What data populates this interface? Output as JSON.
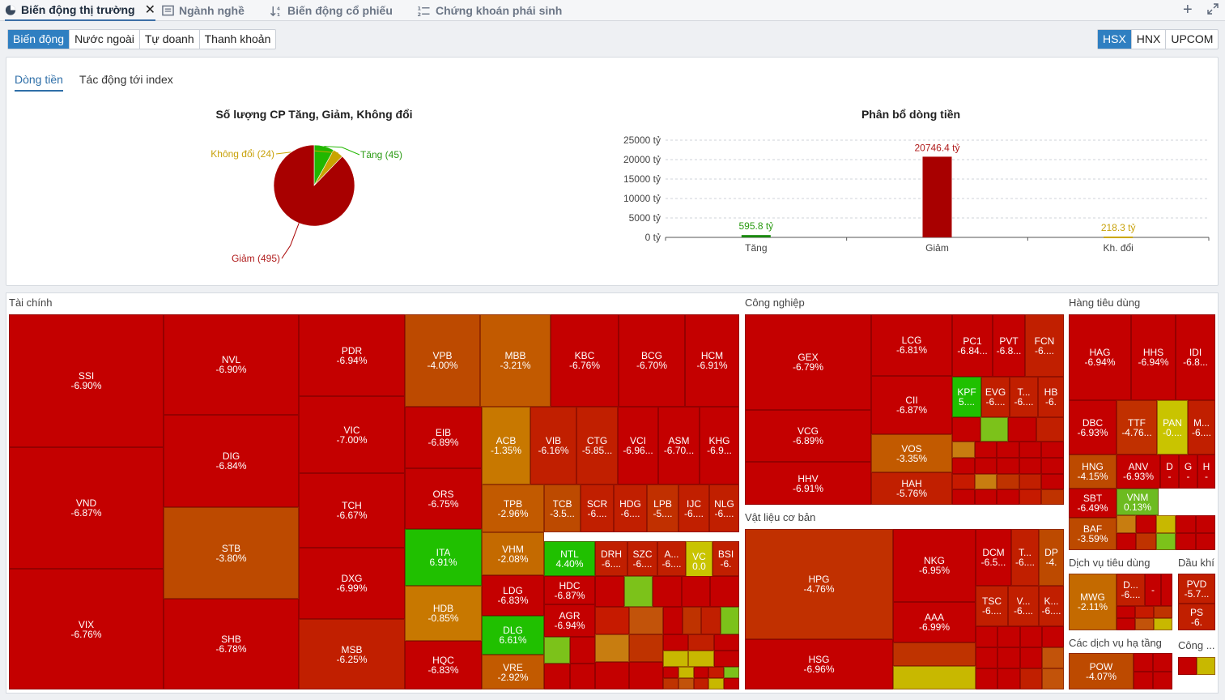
{
  "tabs": [
    {
      "label": "Biến động thị trường",
      "icon": "pie-chart-icon",
      "active": true
    },
    {
      "label": "Ngành nghề",
      "icon": "list-icon",
      "active": false
    },
    {
      "label": "Biến động cổ phiếu",
      "icon": "sort-icon",
      "active": false
    },
    {
      "label": "Chứng khoán phái sinh",
      "icon": "numbered-list-icon",
      "active": false
    }
  ],
  "filter_buttons": [
    "Biến động",
    "Nước ngoài",
    "Tự doanh",
    "Thanh khoản"
  ],
  "exchange_buttons": [
    "HSX",
    "HNX",
    "UPCOM"
  ],
  "subtabs": [
    "Dòng tiền",
    "Tác động tới index"
  ],
  "colors": {
    "down": "#b30000",
    "up": "#21b700",
    "flat": "#c9a400",
    "bar_up": "#198a0e",
    "bar_down": "#a80000",
    "label_up": "#2a9a12",
    "label_down": "#b01c1c",
    "label_flat": "#c8a10a",
    "accent": "#2f7fc1"
  },
  "chart_data": [
    {
      "type": "pie",
      "title": "Số lượng CP Tăng, Giảm, Không đổi",
      "slices": [
        {
          "label": "Tăng (45)",
          "value": 45
        },
        {
          "label": "Không đổi (24)",
          "value": 24
        },
        {
          "label": "Giảm (495)",
          "value": 495
        }
      ]
    },
    {
      "type": "bar",
      "title": "Phân bổ dòng tiền",
      "categories": [
        "Tăng",
        "Giảm",
        "Kh. đổi"
      ],
      "values": [
        595.8,
        20746.4,
        218.3
      ],
      "value_labels": [
        "595.8 tỷ",
        "20746.4 tỷ",
        "218.3 tỷ"
      ],
      "yticks": [
        "0 tỷ",
        "5000 tỷ",
        "10000 tỷ",
        "15000 tỷ",
        "20000 tỷ",
        "25000 tỷ"
      ],
      "ylim": [
        0,
        25000
      ],
      "grid": true
    }
  ],
  "sectors": [
    "Tài chính",
    "Công nghiệp",
    "Hàng tiêu dùng",
    "Vật liệu cơ bản",
    "Dịch vụ tiêu dùng",
    "Dầu khí",
    "Các dịch vụ hạ tầng",
    "Công ..."
  ],
  "stocks": [
    {
      "t": "SSI",
      "p": "-6.90%"
    },
    {
      "t": "VND",
      "p": "-6.87%"
    },
    {
      "t": "VIX",
      "p": "-6.76%"
    },
    {
      "t": "NVL",
      "p": "-6.90%"
    },
    {
      "t": "DIG",
      "p": "-6.84%"
    },
    {
      "t": "STB",
      "p": "-3.80%"
    },
    {
      "t": "SHB",
      "p": "-6.78%"
    },
    {
      "t": "PDR",
      "p": "-6.94%"
    },
    {
      "t": "VIC",
      "p": "-7.00%"
    },
    {
      "t": "TCH",
      "p": "-6.67%"
    },
    {
      "t": "DXG",
      "p": "-6.99%"
    },
    {
      "t": "MSB",
      "p": "-6.25%"
    },
    {
      "t": "VPB",
      "p": "-4.00%"
    },
    {
      "t": "MBB",
      "p": "-3.21%"
    },
    {
      "t": "KBC",
      "p": "-6.76%"
    },
    {
      "t": "BCG",
      "p": "-6.70%"
    },
    {
      "t": "HCM",
      "p": "-6.91%"
    },
    {
      "t": "EIB",
      "p": "-6.89%"
    },
    {
      "t": "ORS",
      "p": "-6.75%"
    },
    {
      "t": "ITA",
      "p": "6.91%"
    },
    {
      "t": "HDB",
      "p": "-0.85%"
    },
    {
      "t": "HQC",
      "p": "-6.83%"
    },
    {
      "t": "ACB",
      "p": "-1.35%"
    },
    {
      "t": "VIB",
      "p": "-6.16%"
    },
    {
      "t": "CTG",
      "p": "-5.85..."
    },
    {
      "t": "VCI",
      "p": "-6.96..."
    },
    {
      "t": "ASM",
      "p": "-6.70..."
    },
    {
      "t": "KHG",
      "p": "-6.9..."
    },
    {
      "t": "TPB",
      "p": "-2.96%"
    },
    {
      "t": "TCB",
      "p": "-3.5..."
    },
    {
      "t": "SCR",
      "p": "-6...."
    },
    {
      "t": "HDG",
      "p": "-6...."
    },
    {
      "t": "LPB",
      "p": "-5...."
    },
    {
      "t": "IJC",
      "p": "-6...."
    },
    {
      "t": "NLG",
      "p": "-6...."
    },
    {
      "t": "VHM",
      "p": "-2.08%"
    },
    {
      "t": "NTL",
      "p": "4.40%"
    },
    {
      "t": "DRH",
      "p": "-6...."
    },
    {
      "t": "SZC",
      "p": "-6...."
    },
    {
      "t": "A...",
      "p": "-6...."
    },
    {
      "t": "VC",
      "p": "0.0"
    },
    {
      "t": "BSI",
      "p": "-6."
    },
    {
      "t": "LDG",
      "p": "-6.83%"
    },
    {
      "t": "HDC",
      "p": "-6.87%"
    },
    {
      "t": "AGR",
      "p": "-6.94%"
    },
    {
      "t": "DLG",
      "p": "6.61%"
    },
    {
      "t": "VRE",
      "p": "-2.92%"
    },
    {
      "t": "GEX",
      "p": "-6.79%"
    },
    {
      "t": "VCG",
      "p": "-6.89%"
    },
    {
      "t": "HHV",
      "p": "-6.91%"
    },
    {
      "t": "LCG",
      "p": "-6.81%"
    },
    {
      "t": "CII",
      "p": "-6.87%"
    },
    {
      "t": "VOS",
      "p": "-3.35%"
    },
    {
      "t": "HAH",
      "p": "-5.76%"
    },
    {
      "t": "PC1",
      "p": "-6.84..."
    },
    {
      "t": "PVT",
      "p": "-6.8..."
    },
    {
      "t": "FCN",
      "p": "-6...."
    },
    {
      "t": "KPF",
      "p": "5...."
    },
    {
      "t": "EVG",
      "p": "-6...."
    },
    {
      "t": "T...",
      "p": "-6...."
    },
    {
      "t": "HB",
      "p": "-6."
    },
    {
      "t": "HPG",
      "p": "-4.76%"
    },
    {
      "t": "HSG",
      "p": "-6.96%"
    },
    {
      "t": "NKG",
      "p": "-6.95%"
    },
    {
      "t": "AAA",
      "p": "-6.99%"
    },
    {
      "t": "DCM",
      "p": "-6.5..."
    },
    {
      "t": "T...",
      "p": "-6...."
    },
    {
      "t": "DP",
      "p": "-4."
    },
    {
      "t": "TSC",
      "p": "-6...."
    },
    {
      "t": "V...",
      "p": "-6...."
    },
    {
      "t": "K...",
      "p": "-6...."
    },
    {
      "t": "HAG",
      "p": "-6.94%"
    },
    {
      "t": "HHS",
      "p": "-6.94%"
    },
    {
      "t": "IDI",
      "p": "-6.8..."
    },
    {
      "t": "DBC",
      "p": "-6.93%"
    },
    {
      "t": "TTF",
      "p": "-4.76..."
    },
    {
      "t": "PAN",
      "p": "-0...."
    },
    {
      "t": "M...",
      "p": "-6...."
    },
    {
      "t": "HNG",
      "p": "-4.15%"
    },
    {
      "t": "ANV",
      "p": "-6.93%"
    },
    {
      "t": "D",
      "p": "-"
    },
    {
      "t": "G",
      "p": "-"
    },
    {
      "t": "H",
      "p": "-"
    },
    {
      "t": "SBT",
      "p": "-6.49%"
    },
    {
      "t": "VNM",
      "p": "0.13%"
    },
    {
      "t": "BAF",
      "p": "-3.59%"
    },
    {
      "t": "MWG",
      "p": "-2.11%"
    },
    {
      "t": "D...",
      "p": "-6...."
    },
    {
      "t": "",
      "p": "-"
    },
    {
      "t": "PVD",
      "p": "-5.7..."
    },
    {
      "t": "PS",
      "p": "-6."
    },
    {
      "t": "POW",
      "p": "-4.07%"
    }
  ]
}
